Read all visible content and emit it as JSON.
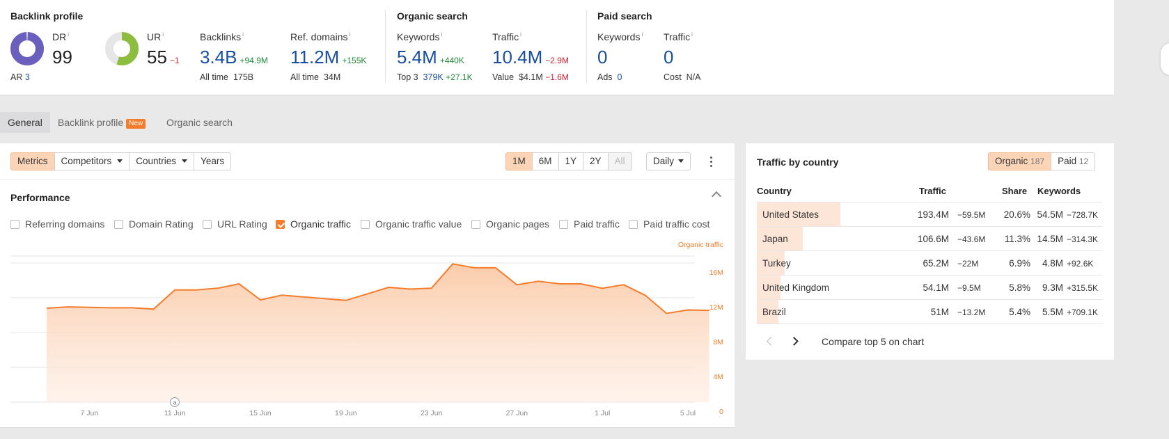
{
  "backlink_profile": {
    "title": "Backlink profile",
    "dr": {
      "label": "DR",
      "value": "99",
      "ar_label": "AR",
      "ar_value": "3"
    },
    "ur": {
      "label": "UR",
      "value": "55",
      "delta": "−1"
    },
    "backlinks": {
      "label": "Backlinks",
      "value": "3.4B",
      "delta": "+94.9M",
      "sub_label": "All time",
      "sub_value": "175B"
    },
    "ref_domains": {
      "label": "Ref. domains",
      "value": "11.2M",
      "delta": "+155K",
      "sub_label": "All time",
      "sub_value": "34M"
    }
  },
  "organic_search": {
    "title": "Organic search",
    "keywords": {
      "label": "Keywords",
      "value": "5.4M",
      "delta": "+440K",
      "sub_label": "Top 3",
      "sub_value": "379K",
      "sub_delta": "+27.1K"
    },
    "traffic": {
      "label": "Traffic",
      "value": "10.4M",
      "delta": "−2.9M",
      "sub_label": "Value",
      "sub_value": "$4.1M",
      "sub_delta": "−1.6M"
    }
  },
  "paid_search": {
    "title": "Paid search",
    "keywords": {
      "label": "Keywords",
      "value": "0",
      "sub_label": "Ads",
      "sub_value": "0"
    },
    "traffic": {
      "label": "Traffic",
      "value": "0",
      "sub_label": "Cost",
      "sub_value": "N/A"
    }
  },
  "tabs": [
    {
      "label": "General",
      "active": true
    },
    {
      "label": "Backlink profile",
      "badge": "New"
    },
    {
      "label": "Organic search"
    }
  ],
  "toolbar": {
    "view_buttons": [
      "Metrics",
      "Competitors",
      "Countries",
      "Years"
    ],
    "ranges": [
      "1M",
      "6M",
      "1Y",
      "2Y",
      "All"
    ],
    "interval": "Daily"
  },
  "performance": {
    "title": "Performance",
    "checkboxes": [
      {
        "label": "Referring domains",
        "checked": false
      },
      {
        "label": "Domain Rating",
        "checked": false
      },
      {
        "label": "URL Rating",
        "checked": false
      },
      {
        "label": "Organic traffic",
        "checked": true
      },
      {
        "label": "Organic traffic value",
        "checked": false
      },
      {
        "label": "Organic pages",
        "checked": false
      },
      {
        "label": "Paid traffic",
        "checked": false
      },
      {
        "label": "Paid traffic cost",
        "checked": false
      }
    ],
    "annotation_marker": "a"
  },
  "chart_data": {
    "type": "area",
    "series_label": "Organic traffic",
    "x_tick_labels": [
      "7 Jun",
      "11 Jun",
      "15 Jun",
      "19 Jun",
      "23 Jun",
      "27 Jun",
      "1 Jul",
      "5 Jul"
    ],
    "y_tick_labels": [
      "0",
      "4M",
      "8M",
      "12M",
      "16M"
    ],
    "ylim": [
      0,
      16000000
    ],
    "grid": true,
    "color": "#f57c2b",
    "start_date": "2024-06-05",
    "y": [
      10.8,
      10.95,
      10.9,
      10.85,
      10.85,
      10.7,
      12.9,
      12.9,
      13.1,
      13.6,
      11.75,
      12.3,
      12.1,
      11.9,
      11.7,
      12.45,
      13.2,
      13.0,
      13.1,
      15.9,
      15.45,
      15.45,
      13.5,
      13.9,
      13.6,
      13.6,
      13.1,
      13.5,
      12.3,
      10.2,
      10.6,
      10.55
    ],
    "y_unit": "M"
  },
  "traffic_by_country": {
    "title": "Traffic by country",
    "toggle": [
      {
        "label": "Organic",
        "count": "187",
        "active": true
      },
      {
        "label": "Paid",
        "count": "12",
        "active": false
      }
    ],
    "columns": [
      "Country",
      "Traffic",
      "Share",
      "Keywords"
    ],
    "rows": [
      {
        "country": "United States",
        "traffic": "193.4M",
        "traffic_delta": "−59.5M",
        "share": "20.6%",
        "share_value": 20.6,
        "keywords": "54.5M",
        "keywords_delta": "−728.7K",
        "kw_up": false
      },
      {
        "country": "Japan",
        "traffic": "106.6M",
        "traffic_delta": "−43.6M",
        "share": "11.3%",
        "share_value": 11.3,
        "keywords": "14.5M",
        "keywords_delta": "−314.3K",
        "kw_up": false
      },
      {
        "country": "Turkey",
        "traffic": "65.2M",
        "traffic_delta": "−22M",
        "share": "6.9%",
        "share_value": 6.9,
        "keywords": "4.8M",
        "keywords_delta": "+92.6K",
        "kw_up": true
      },
      {
        "country": "United Kingdom",
        "traffic": "54.1M",
        "traffic_delta": "−9.5M",
        "share": "5.8%",
        "share_value": 5.8,
        "keywords": "9.3M",
        "keywords_delta": "+315.5K",
        "kw_up": true
      },
      {
        "country": "Brazil",
        "traffic": "51M",
        "traffic_delta": "−13.2M",
        "share": "5.4%",
        "share_value": 5.4,
        "keywords": "5.5M",
        "keywords_delta": "+709.1K",
        "kw_up": true
      }
    ],
    "compare_label": "Compare top 5 on chart"
  }
}
